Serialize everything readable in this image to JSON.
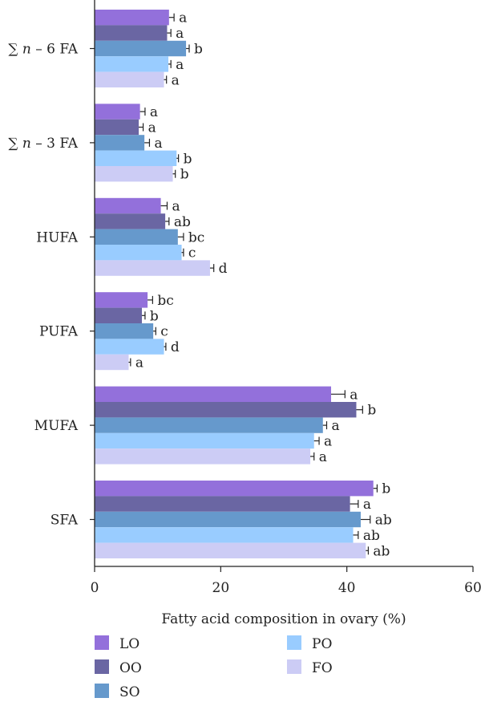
{
  "chart_data": {
    "type": "bar",
    "orientation": "horizontal",
    "categories": [
      "∑ n – 6 FA",
      "∑ n – 3 FA",
      "HUFA",
      "PUFA",
      "MUFA",
      "SFA"
    ],
    "series": [
      {
        "name": "LO",
        "color": "#9370DB",
        "values": [
          11.8,
          7.2,
          10.5,
          8.4,
          37.5,
          44.2
        ],
        "errors": [
          0.8,
          0.8,
          1.0,
          0.8,
          2.2,
          0.6
        ],
        "labels": [
          "a",
          "a",
          "a",
          "bc",
          "a",
          "b"
        ]
      },
      {
        "name": "OO",
        "color": "#6A66A3",
        "values": [
          11.5,
          7.0,
          11.2,
          7.5,
          41.5,
          40.5
        ],
        "errors": [
          0.6,
          0.7,
          0.6,
          0.5,
          1.0,
          1.3
        ],
        "labels": [
          "a",
          "a",
          "ab",
          "b",
          "b",
          "a"
        ]
      },
      {
        "name": "SO",
        "color": "#6699CC",
        "values": [
          14.5,
          7.9,
          13.2,
          9.3,
          36.2,
          42.2
        ],
        "errors": [
          0.5,
          0.8,
          0.9,
          0.4,
          0.6,
          1.5
        ],
        "labels": [
          "b",
          "a",
          "bc",
          "c",
          "a",
          "ab"
        ]
      },
      {
        "name": "PO",
        "color": "#99CCFF",
        "values": [
          11.7,
          13.0,
          13.8,
          11.0,
          34.8,
          41.0
        ],
        "errors": [
          0.4,
          0.3,
          0.3,
          0.3,
          0.8,
          0.8
        ],
        "labels": [
          "a",
          "b",
          "c",
          "d",
          "a",
          "ab"
        ]
      },
      {
        "name": "FO",
        "color": "#CCCCF5",
        "values": [
          11.0,
          12.4,
          18.3,
          5.4,
          34.2,
          43.0
        ],
        "errors": [
          0.4,
          0.4,
          0.6,
          0.3,
          0.6,
          0.4
        ],
        "labels": [
          "a",
          "b",
          "d",
          "a",
          "a",
          "ab"
        ]
      }
    ],
    "xlabel": "Fatty acid composition in ovary (%)",
    "xlim": [
      0,
      60
    ],
    "xticks": [
      0,
      20,
      40,
      60
    ],
    "grid": false,
    "legend_position": "bottom"
  }
}
